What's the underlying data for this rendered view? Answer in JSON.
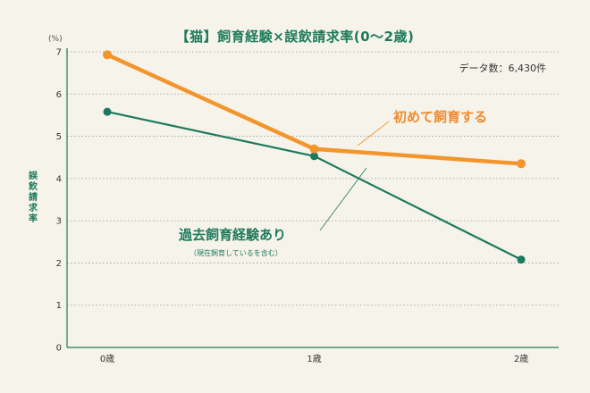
{
  "chart_data": {
    "type": "line",
    "title": "【猫】飼育経験×誤飲請求率(0〜2歳)",
    "ylabel": "誤飲請求率",
    "yunit": "(%)",
    "note": "データ数：6,430件",
    "categories": [
      "0歳",
      "1歳",
      "2歳"
    ],
    "ylim": [
      0,
      7
    ],
    "yticks": [
      0,
      1,
      2,
      3,
      4,
      5,
      6,
      7
    ],
    "grid": true,
    "series": [
      {
        "name": "初めて飼育する",
        "sub": "",
        "values": [
          6.93,
          4.7,
          4.35
        ],
        "color": "#f3952d"
      },
      {
        "name": "過去飼育経験あり",
        "sub": "（現在飼育しているを含む）",
        "values": [
          5.58,
          4.53,
          2.08
        ],
        "color": "#1d7a5c"
      }
    ]
  },
  "colors": {
    "background": "#f6f3ea",
    "grid": "#999999",
    "axis": "#1d7a5c"
  }
}
